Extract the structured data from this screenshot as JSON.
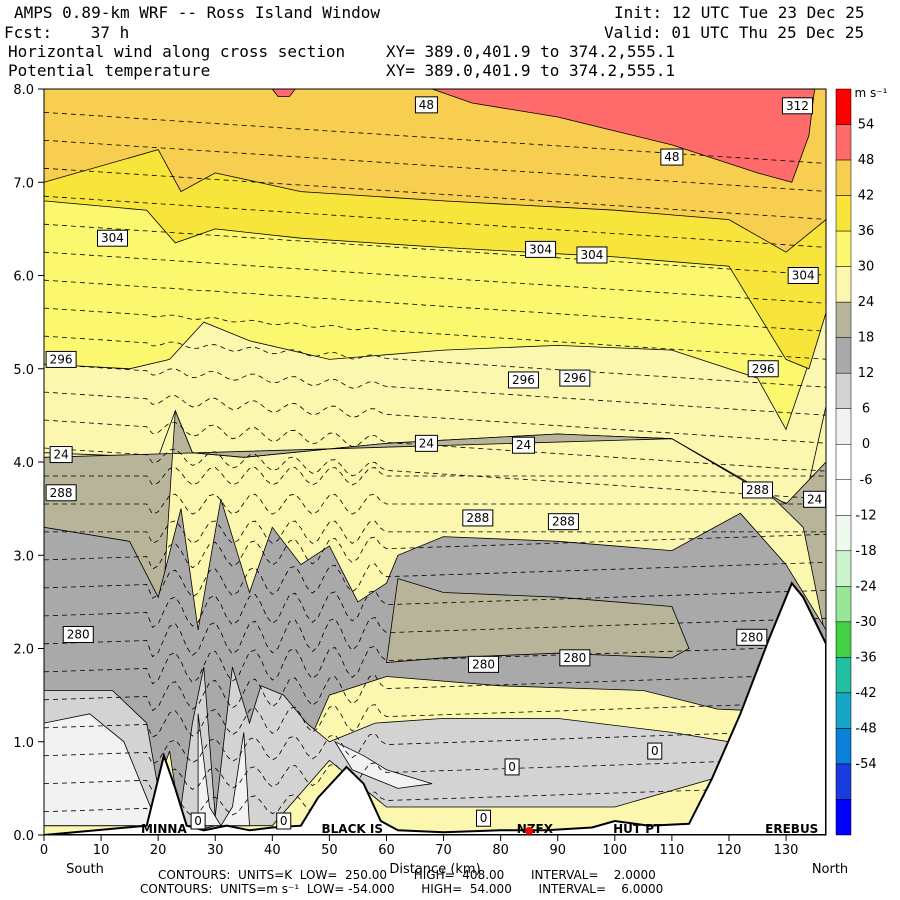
{
  "header": {
    "title": "AMPS 0.89-km WRF -- Ross Island Window",
    "forecast": "Fcst:    37 h",
    "init": "Init: 12 UTC Tue 23 Dec 25",
    "valid": "Valid: 01 UTC Thu 25 Dec 25",
    "field1": "Horizontal wind along cross section",
    "field2": "Potential temperature",
    "xy1": "XY= 389.0,401.9 to 374.2,555.1",
    "xy2": "XY= 389.0,401.9 to 374.2,555.1"
  },
  "footer": {
    "line1": "CONTOURS:  UNITS=K  LOW=  250.00       HIGH=  408.00       INTERVAL=    2.0000",
    "line2": "CONTOURS:  UNITS=m s⁻¹  LOW= -54.000       HIGH=  54.000       INTERVAL=    6.0000"
  },
  "chart_data": {
    "type": "heatmap",
    "xlabel": "Distance (km)",
    "x_end_labels": [
      "South",
      "North"
    ],
    "xlim": [
      0,
      137
    ],
    "ylim": [
      0,
      8
    ],
    "x_ticks": [
      0,
      10,
      20,
      30,
      40,
      50,
      60,
      70,
      80,
      90,
      100,
      110,
      120,
      130
    ],
    "y_ticks": [
      "0.0",
      "1.0",
      "2.0",
      "3.0",
      "4.0",
      "5.0",
      "6.0",
      "7.0",
      "8.0"
    ],
    "colorbar": {
      "units": "m s⁻¹",
      "labels": [
        "54",
        "48",
        "42",
        "36",
        "30",
        "24",
        "18",
        "12",
        "6",
        "0",
        "-6",
        "-12",
        "-18",
        "-24",
        "-30",
        "-36",
        "-42",
        "-48",
        "-54"
      ],
      "colors": [
        "#ff0000",
        "#ff6b6b",
        "#f7ce4f",
        "#f7e53c",
        "#fbf76e",
        "#fbf7af",
        "#b7b49a",
        "#a9a9a9",
        "#d3d3d3",
        "#f2f2f2",
        "#ffffff",
        "#ffffff",
        "#eefaee",
        "#ccf3cc",
        "#99e699",
        "#44d044",
        "#22c0a0",
        "#18a6c8",
        "#0a80d8",
        "#1a3be0",
        "#0000ff"
      ]
    },
    "theta_labels": [
      {
        "x": 12,
        "y": 6.4,
        "text": "304"
      },
      {
        "x": 87,
        "y": 6.28,
        "text": "304"
      },
      {
        "x": 96,
        "y": 6.22,
        "text": "304"
      },
      {
        "x": 133,
        "y": 6.0,
        "text": "304"
      },
      {
        "x": 3,
        "y": 5.1,
        "text": "296"
      },
      {
        "x": 84,
        "y": 4.88,
        "text": "296"
      },
      {
        "x": 93,
        "y": 4.9,
        "text": "296"
      },
      {
        "x": 126,
        "y": 5.0,
        "text": "296"
      },
      {
        "x": 3,
        "y": 3.67,
        "text": "288"
      },
      {
        "x": 76,
        "y": 3.4,
        "text": "288"
      },
      {
        "x": 91,
        "y": 3.36,
        "text": "288"
      },
      {
        "x": 125,
        "y": 3.7,
        "text": "288"
      },
      {
        "x": 6,
        "y": 2.15,
        "text": "280"
      },
      {
        "x": 77,
        "y": 1.83,
        "text": "280"
      },
      {
        "x": 93,
        "y": 1.9,
        "text": "280"
      },
      {
        "x": 124,
        "y": 2.12,
        "text": "280"
      },
      {
        "x": 132,
        "y": 7.82,
        "text": "312"
      }
    ],
    "wind_labels": [
      {
        "x": 67,
        "y": 7.83,
        "text": "48"
      },
      {
        "x": 110,
        "y": 7.27,
        "text": "48"
      },
      {
        "x": 3,
        "y": 4.08,
        "text": "24"
      },
      {
        "x": 67,
        "y": 4.2,
        "text": "24"
      },
      {
        "x": 84,
        "y": 4.18,
        "text": "24"
      },
      {
        "x": 135,
        "y": 3.6,
        "text": "24"
      },
      {
        "x": 82,
        "y": 0.73,
        "text": "0"
      },
      {
        "x": 107,
        "y": 0.9,
        "text": "0"
      },
      {
        "x": 27,
        "y": 0.15,
        "text": "0"
      },
      {
        "x": 42,
        "y": 0.15,
        "text": "0"
      },
      {
        "x": 77,
        "y": 0.18,
        "text": "0"
      }
    ],
    "locations": [
      {
        "x": 21,
        "text": "MINNA"
      },
      {
        "x": 54,
        "text": "BLACK IS"
      },
      {
        "x": 86,
        "text": "NZFX"
      },
      {
        "x": 104,
        "text": "HUT PT"
      },
      {
        "x": 131,
        "text": "EREBUS"
      }
    ],
    "terrain": [
      [
        0,
        0
      ],
      [
        18,
        0.1
      ],
      [
        21,
        0.85
      ],
      [
        23,
        0.5
      ],
      [
        25,
        0.1
      ],
      [
        28,
        0.05
      ],
      [
        32,
        0.1
      ],
      [
        36,
        0.05
      ],
      [
        40,
        0.08
      ],
      [
        45,
        0.1
      ],
      [
        48,
        0.4
      ],
      [
        53,
        0.73
      ],
      [
        56,
        0.55
      ],
      [
        59,
        0.15
      ],
      [
        62,
        0.05
      ],
      [
        70,
        0.03
      ],
      [
        80,
        0.05
      ],
      [
        88,
        0.05
      ],
      [
        96,
        0.08
      ],
      [
        100,
        0.15
      ],
      [
        106,
        0.1
      ],
      [
        113,
        0.12
      ],
      [
        117,
        0.6
      ],
      [
        122,
        1.3
      ],
      [
        127,
        2.1
      ],
      [
        131,
        2.7
      ],
      [
        133,
        2.55
      ],
      [
        135,
        2.3
      ],
      [
        137,
        2.05
      ]
    ],
    "wind_regions": [
      {
        "color": "#fbf7af",
        "pts": [
          [
            0,
            4.1
          ],
          [
            20,
            4.05
          ],
          [
            23,
            4.55
          ],
          [
            26,
            4.1
          ],
          [
            35,
            4.05
          ],
          [
            60,
            4.2
          ],
          [
            90,
            4.3
          ],
          [
            110,
            4.25
          ],
          [
            128,
            3.6
          ],
          [
            133,
            3.5
          ],
          [
            137,
            4.6
          ],
          [
            137,
            6.6
          ],
          [
            0,
            6.6
          ]
        ]
      },
      {
        "color": "#fbf76e",
        "pts": [
          [
            0,
            5.05
          ],
          [
            15,
            5.0
          ],
          [
            22,
            5.1
          ],
          [
            28,
            5.5
          ],
          [
            36,
            5.3
          ],
          [
            50,
            5.1
          ],
          [
            70,
            5.2
          ],
          [
            90,
            5.25
          ],
          [
            110,
            5.2
          ],
          [
            125,
            4.9
          ],
          [
            130,
            4.35
          ],
          [
            137,
            5.6
          ],
          [
            137,
            7.5
          ],
          [
            0,
            7.5
          ]
        ]
      },
      {
        "color": "#f7e53c",
        "pts": [
          [
            0,
            6.8
          ],
          [
            18,
            6.7
          ],
          [
            23,
            6.35
          ],
          [
            30,
            6.5
          ],
          [
            45,
            6.4
          ],
          [
            70,
            6.3
          ],
          [
            100,
            6.2
          ],
          [
            120,
            6.1
          ],
          [
            130,
            5.1
          ],
          [
            134,
            5.0
          ],
          [
            137,
            5.6
          ],
          [
            137,
            7.3
          ],
          [
            132,
            7.0
          ],
          [
            120,
            7.2
          ],
          [
            110,
            7.5
          ],
          [
            90,
            7.8
          ],
          [
            0,
            8
          ]
        ]
      },
      {
        "color": "#f7ce4f",
        "pts": [
          [
            0,
            7.0
          ],
          [
            20,
            7.35
          ],
          [
            24,
            6.9
          ],
          [
            30,
            7.1
          ],
          [
            45,
            6.9
          ],
          [
            70,
            6.8
          ],
          [
            100,
            6.7
          ],
          [
            120,
            6.6
          ],
          [
            130,
            6.25
          ],
          [
            137,
            6.6
          ],
          [
            137,
            8
          ],
          [
            0,
            8
          ]
        ]
      },
      {
        "color": "#ff6b6b",
        "pts": [
          [
            68,
            8
          ],
          [
            75,
            7.85
          ],
          [
            90,
            7.7
          ],
          [
            110,
            7.4
          ],
          [
            125,
            7.1
          ],
          [
            131,
            7.0
          ],
          [
            134,
            7.5
          ],
          [
            135,
            8
          ]
        ]
      },
      {
        "color": "#ff6b6b",
        "pts": [
          [
            40,
            8
          ],
          [
            41,
            7.92
          ],
          [
            43,
            7.92
          ],
          [
            44,
            8
          ]
        ]
      },
      {
        "color": "#b7b49a",
        "pts": [
          [
            0,
            4.0
          ],
          [
            0,
            0.6
          ],
          [
            20,
            1.7
          ],
          [
            23,
            4.55
          ],
          [
            26,
            4.1
          ],
          [
            35,
            4.05
          ],
          [
            60,
            4.2
          ],
          [
            90,
            4.3
          ],
          [
            110,
            4.25
          ],
          [
            128,
            3.6
          ],
          [
            133,
            3.3
          ],
          [
            137,
            2.1
          ],
          [
            137,
            4.0
          ],
          [
            130,
            3.55
          ],
          [
            110,
            4.25
          ],
          [
            0,
            4.05
          ]
        ]
      },
      {
        "color": "#a9a9a9",
        "pts": [
          [
            0,
            3.3
          ],
          [
            15,
            3.15
          ],
          [
            20,
            2.55
          ],
          [
            24,
            3.5
          ],
          [
            27,
            2.2
          ],
          [
            31,
            3.6
          ],
          [
            36,
            2.6
          ],
          [
            40,
            3.3
          ],
          [
            45,
            2.9
          ],
          [
            50,
            3.1
          ],
          [
            55,
            2.5
          ],
          [
            60,
            2.7
          ],
          [
            62,
            3.0
          ],
          [
            70,
            3.2
          ],
          [
            90,
            3.15
          ],
          [
            110,
            3.05
          ],
          [
            122,
            3.45
          ],
          [
            130,
            2.9
          ],
          [
            137,
            2.2
          ],
          [
            137,
            1.3
          ],
          [
            118,
            1.35
          ],
          [
            105,
            1.55
          ],
          [
            80,
            1.6
          ],
          [
            60,
            1.7
          ],
          [
            50,
            1.5
          ],
          [
            45,
            0.8
          ],
          [
            40,
            0.5
          ],
          [
            36,
            0.1
          ],
          [
            33,
            0.1
          ],
          [
            30,
            0.1
          ],
          [
            27,
            0.05
          ],
          [
            24,
            0.1
          ],
          [
            22,
            0.9
          ],
          [
            18,
            0.2
          ],
          [
            0,
            0.55
          ]
        ]
      },
      {
        "color": "#b7b49a",
        "pts": [
          [
            62,
            2.75
          ],
          [
            70,
            2.6
          ],
          [
            90,
            2.55
          ],
          [
            110,
            2.45
          ],
          [
            113,
            2.0
          ],
          [
            110,
            1.9
          ],
          [
            90,
            1.95
          ],
          [
            70,
            1.9
          ],
          [
            60,
            1.85
          ]
        ]
      },
      {
        "color": "#d3d3d3",
        "pts": [
          [
            0,
            1.55
          ],
          [
            12,
            1.55
          ],
          [
            18,
            1.2
          ],
          [
            20,
            0.5
          ],
          [
            24,
            0.3
          ],
          [
            26,
            1.2
          ],
          [
            28,
            1.8
          ],
          [
            30,
            0.2
          ],
          [
            33,
            1.8
          ],
          [
            36,
            1.2
          ],
          [
            38,
            1.6
          ],
          [
            42,
            1.5
          ],
          [
            46,
            1.2
          ],
          [
            50,
            1.0
          ],
          [
            58,
            1.2
          ],
          [
            70,
            1.25
          ],
          [
            90,
            1.25
          ],
          [
            110,
            1.1
          ],
          [
            120,
            1.0
          ],
          [
            125,
            1.4
          ],
          [
            126,
            1.2
          ],
          [
            117,
            0.6
          ],
          [
            100,
            0.3
          ],
          [
            70,
            0.3
          ],
          [
            60,
            0.3
          ],
          [
            50,
            0.8
          ],
          [
            40,
            0.1
          ],
          [
            30,
            0.1
          ],
          [
            20,
            0.1
          ],
          [
            0,
            0.1
          ]
        ]
      },
      {
        "color": "#f2f2f2",
        "pts": [
          [
            0,
            1.2
          ],
          [
            8,
            1.3
          ],
          [
            14,
            1.0
          ],
          [
            18,
            0.4
          ],
          [
            20,
            0.1
          ],
          [
            0,
            0.1
          ]
        ]
      },
      {
        "color": "#f2f2f2",
        "pts": [
          [
            27,
            1.3
          ],
          [
            29,
            0.3
          ],
          [
            31,
            0.1
          ],
          [
            33,
            0.3
          ],
          [
            35,
            1.1
          ],
          [
            36,
            0.1
          ],
          [
            27,
            0.1
          ]
        ]
      },
      {
        "color": "#f2f2f2",
        "pts": [
          [
            51,
            1.0
          ],
          [
            56,
            0.85
          ],
          [
            60,
            0.7
          ],
          [
            68,
            0.55
          ],
          [
            62,
            0.5
          ],
          [
            54,
            0.7
          ]
        ]
      }
    ]
  }
}
